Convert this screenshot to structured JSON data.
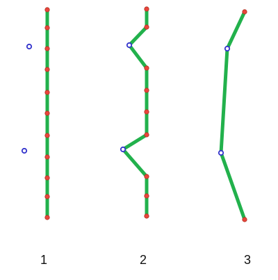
{
  "colors": {
    "edge": "#22b14c",
    "vertex_fill": "#e8453c",
    "vertex_stroke": "#b03020",
    "control_point": "#3333cc",
    "background": "#ffffff"
  },
  "panels": [
    {
      "label": "1"
    },
    {
      "label": "2"
    },
    {
      "label": "3"
    }
  ]
}
